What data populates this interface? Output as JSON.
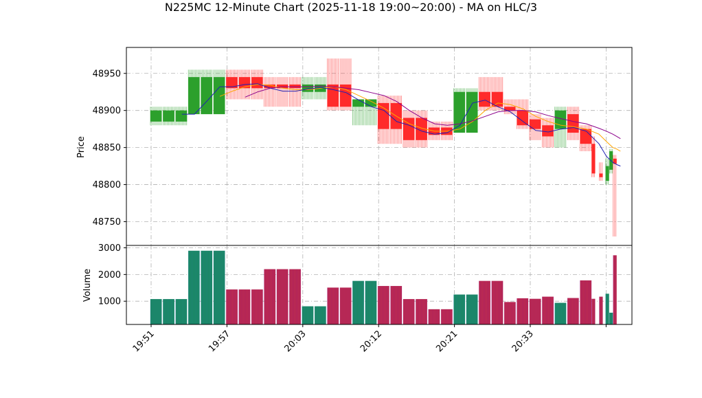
{
  "chart_data": {
    "type": "candlestick",
    "title": "N225MC 12-Minute Chart (2025-11-18 19:00~20:00) - MA on HLC/3",
    "ylabel_price": "Price",
    "ylabel_volume": "Volume",
    "price_ylim": [
      48718,
      48985
    ],
    "volume_ylim": [
      130,
      3090
    ],
    "price_ticks": [
      48750,
      48800,
      48850,
      48900,
      48950
    ],
    "volume_ticks": [
      1000,
      2000,
      3000
    ],
    "x_ticks": [
      {
        "i": 0,
        "label": "19:51"
      },
      {
        "i": 6,
        "label": "19:57"
      },
      {
        "i": 12,
        "label": "20:03"
      },
      {
        "i": 18,
        "label": "20:12"
      },
      {
        "i": 24,
        "label": "20:21"
      },
      {
        "i": 30,
        "label": "20:33"
      },
      {
        "i": 36,
        "label": ""
      }
    ],
    "colors": {
      "up": "#2ca02c",
      "down": "#ff2a2a",
      "ma_fast": "#1f1fb4",
      "ma_mid": "#ffa500",
      "ma_slow": "#8b008b",
      "vol_edge": "#8b008b",
      "grid": "#b0b0b0"
    },
    "candles": [
      {
        "o": 48885,
        "h": 48905,
        "l": 48880,
        "c": 48900,
        "v": 1080
      },
      {
        "o": 48885,
        "h": 48905,
        "l": 48880,
        "c": 48900,
        "v": 1080
      },
      {
        "o": 48885,
        "h": 48905,
        "l": 48880,
        "c": 48900,
        "v": 1080
      },
      {
        "o": 48895,
        "h": 48955,
        "l": 48895,
        "c": 48945,
        "v": 2890
      },
      {
        "o": 48895,
        "h": 48955,
        "l": 48895,
        "c": 48945,
        "v": 2890
      },
      {
        "o": 48895,
        "h": 48955,
        "l": 48895,
        "c": 48945,
        "v": 2890
      },
      {
        "o": 48945,
        "h": 48955,
        "l": 48915,
        "c": 48930,
        "v": 1440
      },
      {
        "o": 48945,
        "h": 48955,
        "l": 48915,
        "c": 48930,
        "v": 1440
      },
      {
        "o": 48945,
        "h": 48955,
        "l": 48915,
        "c": 48930,
        "v": 1440
      },
      {
        "o": 48935,
        "h": 48945,
        "l": 48905,
        "c": 48930,
        "v": 2200
      },
      {
        "o": 48935,
        "h": 48945,
        "l": 48905,
        "c": 48930,
        "v": 2200
      },
      {
        "o": 48935,
        "h": 48945,
        "l": 48905,
        "c": 48930,
        "v": 2200
      },
      {
        "o": 48925,
        "h": 48945,
        "l": 48915,
        "c": 48935,
        "v": 810
      },
      {
        "o": 48925,
        "h": 48945,
        "l": 48915,
        "c": 48935,
        "v": 810
      },
      {
        "o": 48935,
        "h": 48970,
        "l": 48900,
        "c": 48905,
        "v": 1510
      },
      {
        "o": 48935,
        "h": 48970,
        "l": 48900,
        "c": 48905,
        "v": 1510
      },
      {
        "o": 48905,
        "h": 48915,
        "l": 48880,
        "c": 48915,
        "v": 1760
      },
      {
        "o": 48905,
        "h": 48915,
        "l": 48880,
        "c": 48915,
        "v": 1760
      },
      {
        "o": 48910,
        "h": 48920,
        "l": 48855,
        "c": 48875,
        "v": 1570
      },
      {
        "o": 48910,
        "h": 48920,
        "l": 48855,
        "c": 48875,
        "v": 1570
      },
      {
        "o": 48890,
        "h": 48900,
        "l": 48850,
        "c": 48860,
        "v": 1080
      },
      {
        "o": 48890,
        "h": 48900,
        "l": 48850,
        "c": 48860,
        "v": 1080
      },
      {
        "o": 48877,
        "h": 48885,
        "l": 48860,
        "c": 48867,
        "v": 700
      },
      {
        "o": 48877,
        "h": 48885,
        "l": 48860,
        "c": 48867,
        "v": 700
      },
      {
        "o": 48870,
        "h": 48930,
        "l": 48870,
        "c": 48925,
        "v": 1250
      },
      {
        "o": 48870,
        "h": 48930,
        "l": 48870,
        "c": 48925,
        "v": 1250
      },
      {
        "o": 48925,
        "h": 48945,
        "l": 48900,
        "c": 48905,
        "v": 1760
      },
      {
        "o": 48925,
        "h": 48945,
        "l": 48900,
        "c": 48905,
        "v": 1760
      },
      {
        "o": 48905,
        "h": 48915,
        "l": 48895,
        "c": 48900,
        "v": 970
      },
      {
        "o": 48900,
        "h": 48915,
        "l": 48875,
        "c": 48880,
        "v": 1110
      },
      {
        "o": 48888,
        "h": 48895,
        "l": 48860,
        "c": 48875,
        "v": 1090
      },
      {
        "o": 48880,
        "h": 48890,
        "l": 48850,
        "c": 48865,
        "v": 1170
      },
      {
        "o": 48875,
        "h": 48905,
        "l": 48850,
        "c": 48900,
        "v": 940
      },
      {
        "o": 48895,
        "h": 48905,
        "l": 48860,
        "c": 48870,
        "v": 1120
      },
      {
        "o": 48875,
        "h": 48880,
        "l": 48845,
        "c": 48855,
        "v": 1780
      },
      {
        "o": 48855,
        "h": 48865,
        "l": 48810,
        "c": 48815,
        "v": 1090
      },
      {
        "o": 48815,
        "h": 48830,
        "l": 48805,
        "c": 48810,
        "v": 1170
      },
      {
        "o": 48805,
        "h": 48835,
        "l": 48800,
        "c": 48825,
        "v": 1280
      },
      {
        "o": 48820,
        "h": 48848,
        "l": 48815,
        "c": 48845,
        "v": 570
      },
      {
        "o": 48835,
        "h": 48840,
        "l": 48730,
        "c": 48828,
        "v": 2720
      }
    ],
    "bar_x": [
      0,
      1,
      2,
      3,
      4,
      5,
      6,
      7,
      8,
      9,
      10,
      11,
      12,
      13,
      14,
      15,
      16,
      17,
      18,
      19,
      20,
      21,
      22,
      23,
      24,
      25,
      26,
      27,
      28,
      29,
      30,
      31,
      32,
      33,
      34,
      35,
      35.6,
      36.1,
      36.4,
      36.7
    ],
    "ma_fast": [
      null,
      null,
      48895,
      48895,
      48913,
      48932,
      48932,
      48935,
      48936,
      48930,
      48926,
      48926,
      48929,
      48931,
      48928,
      48924,
      48914,
      48905,
      48900,
      48885,
      48880,
      48872,
      48868,
      48870,
      48880,
      48910,
      48914,
      48905,
      48898,
      48885,
      48873,
      48871,
      48875,
      48877,
      48872,
      48855,
      48838,
      48830,
      48827,
      48825
    ],
    "ma_mid": [
      null,
      null,
      null,
      null,
      null,
      48919,
      48926,
      48932,
      48935,
      48934,
      48930,
      48928,
      48928,
      48930,
      48932,
      48928,
      48920,
      48912,
      48903,
      48892,
      48882,
      48876,
      48872,
      48872,
      48875,
      48885,
      48900,
      48910,
      48908,
      48902,
      48892,
      48885,
      48880,
      48878,
      48875,
      48868,
      48858,
      48850,
      48848,
      48845
    ],
    "ma_slow": [
      null,
      null,
      null,
      null,
      null,
      null,
      null,
      48918,
      48925,
      48930,
      48932,
      48932,
      48932,
      48933,
      48932,
      48930,
      48928,
      48924,
      48920,
      48912,
      48900,
      48890,
      48882,
      48880,
      48882,
      48886,
      48892,
      48898,
      48900,
      48900,
      48898,
      48893,
      48889,
      48885,
      48882,
      48876,
      48872,
      48868,
      48865,
      48862
    ]
  }
}
